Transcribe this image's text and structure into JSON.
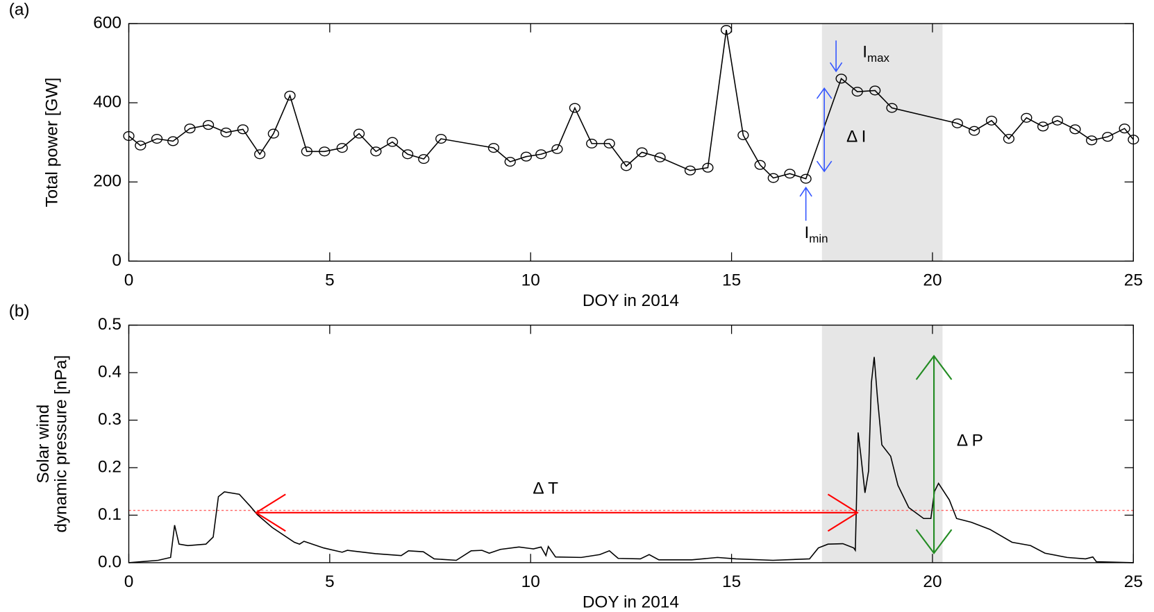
{
  "chart_data": [
    {
      "type": "line",
      "panel_label": "(a)",
      "ylabel": [
        "Total power [GW]"
      ],
      "xlabel": "DOY in 2014",
      "markers": true,
      "color": "#000000",
      "shaded_region": [
        17.25,
        20.25
      ],
      "shade_color": "#e6e6e6",
      "x": [
        0,
        0.29,
        0.7,
        1.1,
        1.52,
        1.98,
        2.42,
        2.84,
        3.26,
        3.6,
        4.01,
        4.43,
        4.87,
        5.31,
        5.73,
        6.15,
        6.56,
        6.94,
        7.34,
        7.77,
        9.08,
        9.49,
        9.89,
        10.26,
        10.66,
        11.1,
        11.52,
        11.96,
        12.38,
        12.77,
        13.22,
        13.97,
        14.41,
        14.87,
        15.29,
        15.71,
        16.04,
        16.45,
        16.85,
        17.73,
        18.13,
        18.57,
        18.99,
        20.62,
        21.04,
        21.47,
        21.9,
        22.34,
        22.75,
        23.11,
        23.55,
        23.96,
        24.36,
        24.78,
        25
      ],
      "values": [
        316,
        292,
        309,
        303,
        335,
        344,
        325,
        333,
        270,
        322,
        418,
        277,
        277,
        286,
        322,
        277,
        301,
        270,
        258,
        309,
        286,
        251,
        264,
        270,
        283,
        387,
        297,
        297,
        240,
        275,
        262,
        229,
        236,
        584,
        318,
        243,
        210,
        221,
        208,
        461,
        428,
        431,
        387,
        348,
        329,
        355,
        309,
        362,
        340,
        355,
        333,
        305,
        314,
        335,
        307
      ],
      "xlim": [
        0,
        25
      ],
      "xticks": [
        0,
        5,
        10,
        15,
        20,
        25
      ],
      "ylim": [
        0,
        600
      ],
      "yticks": [
        0,
        200,
        400,
        600
      ],
      "annotations": {
        "imax": {
          "text": "I",
          "subscript": "max"
        },
        "imin": {
          "text": "I",
          "subscript": "min"
        },
        "delta_i": {
          "text": "Δ I"
        }
      }
    },
    {
      "type": "line",
      "panel_label": "(b)",
      "ylabel": [
        "Solar wind",
        "dynamic pressure [nPa]"
      ],
      "xlabel": "DOY in 2014",
      "markers": false,
      "color": "#000000",
      "shaded_region": [
        17.25,
        20.25
      ],
      "shade_color": "#e6e6e6",
      "reference_line": 0.11,
      "reference_color": "#ff6060",
      "x": [
        0,
        0.73,
        1.04,
        1.14,
        1.25,
        1.47,
        1.92,
        2.1,
        2.23,
        2.38,
        2.75,
        3.02,
        3.2,
        3.57,
        4.12,
        4.25,
        4.36,
        4.85,
        5.31,
        5.44,
        6.14,
        6.78,
        6.96,
        7.33,
        7.6,
        8.15,
        8.52,
        8.79,
        8.97,
        9.25,
        9.71,
        10.07,
        10.26,
        10.38,
        10.44,
        10.62,
        11.26,
        11.72,
        11.96,
        12.18,
        12.73,
        12.95,
        13.19,
        14.01,
        14.65,
        15.11,
        16.03,
        16.94,
        17.16,
        17.4,
        17.77,
        18.04,
        18.08,
        18.15,
        18.22,
        18.32,
        18.41,
        18.48,
        18.55,
        18.63,
        18.74,
        18.96,
        19.14,
        19.41,
        19.78,
        19.96,
        20.05,
        20.15,
        20.42,
        20.6,
        20.97,
        21.43,
        21.98,
        22.44,
        22.8,
        23.35,
        23.81,
        23.99,
        24.08,
        25
      ],
      "values": [
        0,
        0.005,
        0.011,
        0.079,
        0.039,
        0.036,
        0.039,
        0.054,
        0.139,
        0.149,
        0.144,
        0.119,
        0.101,
        0.074,
        0.043,
        0.039,
        0.045,
        0.031,
        0.022,
        0.026,
        0.019,
        0.015,
        0.025,
        0.023,
        0.008,
        0.005,
        0.025,
        0.026,
        0.02,
        0.028,
        0.033,
        0.029,
        0.033,
        0.015,
        0.034,
        0.012,
        0.011,
        0.017,
        0.025,
        0.009,
        0.008,
        0.017,
        0.006,
        0.006,
        0.011,
        0.008,
        0.005,
        0.008,
        0.031,
        0.039,
        0.04,
        0.031,
        0.026,
        0.274,
        0.224,
        0.147,
        0.193,
        0.379,
        0.433,
        0.348,
        0.248,
        0.224,
        0.163,
        0.116,
        0.093,
        0.093,
        0.15,
        0.167,
        0.132,
        0.093,
        0.085,
        0.07,
        0.043,
        0.036,
        0.02,
        0.011,
        0.008,
        0.012,
        0.002,
        0
      ],
      "xlim": [
        0,
        25
      ],
      "xticks": [
        0,
        5,
        10,
        15,
        20,
        25
      ],
      "ylim": [
        0,
        0.5
      ],
      "yticks": [
        {
          "value": 0,
          "label": "0.0"
        },
        0.1,
        0.2,
        0.3,
        0.4,
        0.5
      ],
      "annotations": {
        "delta_t": {
          "text": "Δ T"
        },
        "delta_p": {
          "text": "Δ P"
        }
      }
    }
  ]
}
